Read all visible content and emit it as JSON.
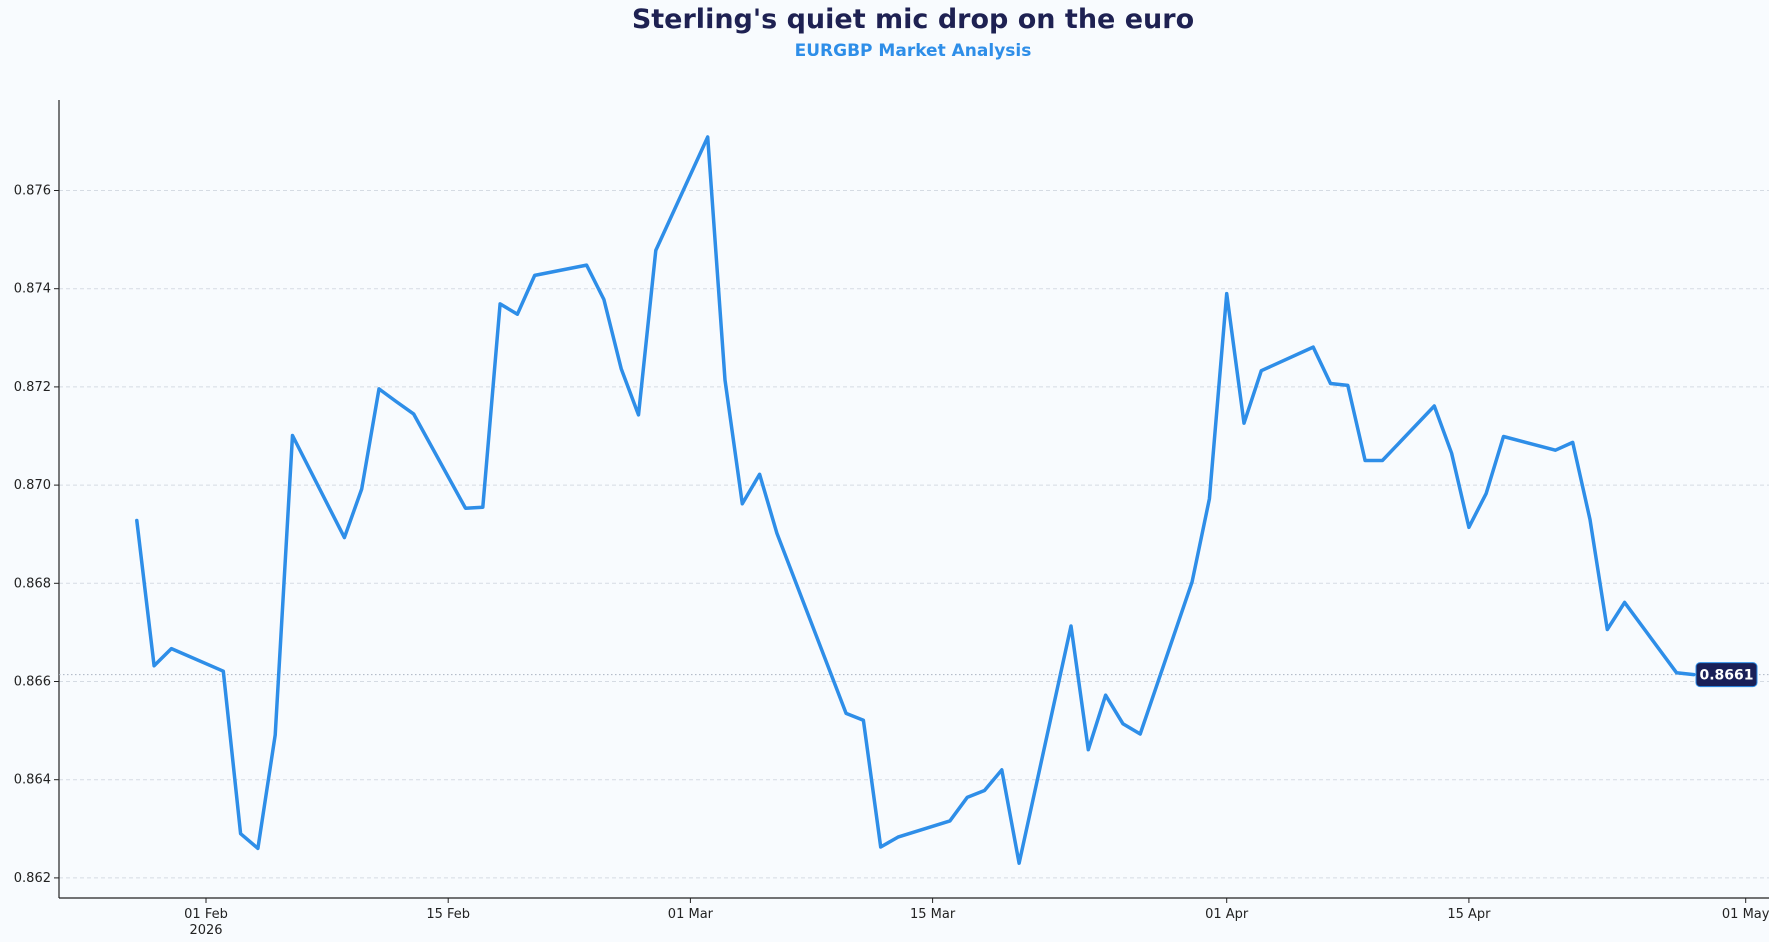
{
  "chart_data": {
    "type": "line",
    "title": "Sterling's quiet mic drop on the euro",
    "subtitle": "EURGBP Market Analysis",
    "xlabel": "",
    "ylabel": "",
    "ylim": [
      0.8616,
      0.8778
    ],
    "xlim": [
      "2026-01-25",
      "2026-05-02"
    ],
    "grid": "horizontal dashed",
    "x_ticks": [
      {
        "date": "2026-02-01",
        "label": "01 Feb",
        "sublabel": "2026"
      },
      {
        "date": "2026-02-15",
        "label": "15 Feb"
      },
      {
        "date": "2026-03-01",
        "label": "01 Mar"
      },
      {
        "date": "2026-03-15",
        "label": "15 Mar"
      },
      {
        "date": "2026-04-01",
        "label": "01 Apr"
      },
      {
        "date": "2026-04-15",
        "label": "15 Apr"
      },
      {
        "date": "2026-05-01",
        "label": "01 May"
      }
    ],
    "y_ticks": [
      "0.862",
      "0.864",
      "0.866",
      "0.868",
      "0.870",
      "0.872",
      "0.874",
      "0.876"
    ],
    "line_color": "#2e8ee8",
    "last_value_label": "0.8661",
    "last_label_bg": "#1a2058",
    "x": [
      "2026-01-28",
      "2026-01-29",
      "2026-01-30",
      "2026-02-02",
      "2026-02-03",
      "2026-02-04",
      "2026-02-05",
      "2026-02-06",
      "2026-02-09",
      "2026-02-10",
      "2026-02-11",
      "2026-02-12",
      "2026-02-13",
      "2026-02-16",
      "2026-02-17",
      "2026-02-18",
      "2026-02-19",
      "2026-02-20",
      "2026-02-23",
      "2026-02-24",
      "2026-02-25",
      "2026-02-26",
      "2026-02-27",
      "2026-03-02",
      "2026-03-03",
      "2026-03-04",
      "2026-03-05",
      "2026-03-06",
      "2026-03-10",
      "2026-03-11",
      "2026-03-12",
      "2026-03-13",
      "2026-03-16",
      "2026-03-17",
      "2026-03-18",
      "2026-03-19",
      "2026-03-20",
      "2026-03-23",
      "2026-03-24",
      "2026-03-25",
      "2026-03-26",
      "2026-03-27",
      "2026-03-30",
      "2026-03-31",
      "2026-04-01",
      "2026-04-02",
      "2026-04-03",
      "2026-04-06",
      "2026-04-07",
      "2026-04-08",
      "2026-04-09",
      "2026-04-10",
      "2026-04-13",
      "2026-04-14",
      "2026-04-15",
      "2026-04-16",
      "2026-04-17",
      "2026-04-20",
      "2026-04-21",
      "2026-04-22",
      "2026-04-23",
      "2026-04-24",
      "2026-04-27",
      "2026-04-28"
    ],
    "y": [
      0.86928,
      0.86632,
      0.86667,
      0.86621,
      0.8629,
      0.8626,
      0.86491,
      0.87101,
      0.86893,
      0.86992,
      0.87196,
      0.8717,
      0.87145,
      0.86953,
      0.86955,
      0.87369,
      0.87348,
      0.87427,
      0.87448,
      0.87378,
      0.87237,
      0.87143,
      0.87478,
      0.87709,
      0.87214,
      0.86962,
      0.87022,
      0.86902,
      0.86535,
      0.86521,
      0.86263,
      0.86283,
      0.86316,
      0.86364,
      0.86378,
      0.8642,
      0.8623,
      0.86713,
      0.86461,
      0.86572,
      0.86514,
      0.86493,
      0.86803,
      0.86972,
      0.8739,
      0.87126,
      0.87233,
      0.87281,
      0.87207,
      0.87203,
      0.8705,
      0.8705,
      0.87161,
      0.87065,
      0.86914,
      0.86983,
      0.87099,
      0.87071,
      0.87087,
      0.8693,
      0.86706,
      0.86761,
      0.86618,
      0.86614
    ]
  }
}
